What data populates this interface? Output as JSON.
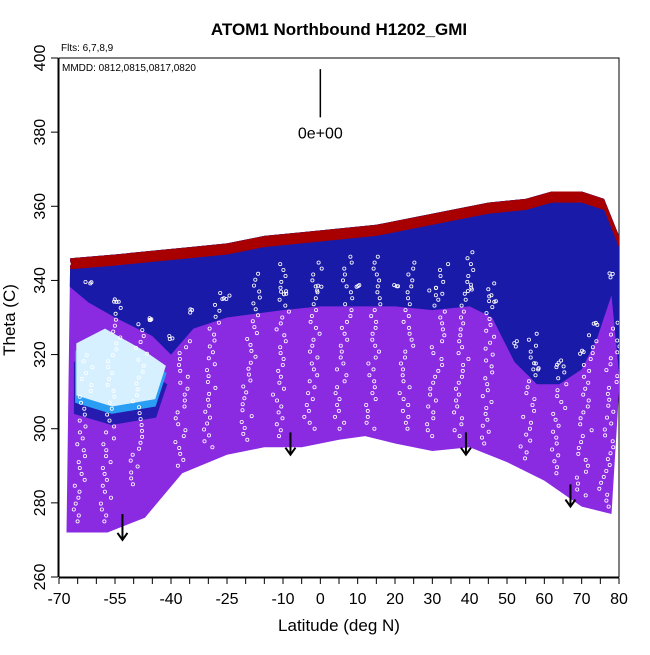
{
  "chart_data": {
    "type": "heatmap",
    "title": "ATOM1 Northbound H1202_GMI",
    "flights_label": "Flts: 6,7,8,9",
    "dates_label": "MMDD: 0812,0815,0817,0820",
    "xlabel": "Latitude (deg N)",
    "ylabel": "Theta (C)",
    "xlim": [
      -70,
      80
    ],
    "ylim": [
      260,
      400
    ],
    "x_ticks": [
      {
        "value": -70,
        "label": "-70"
      },
      {
        "value": -55,
        "label": "-55"
      },
      {
        "value": -40,
        "label": "-40"
      },
      {
        "value": -25,
        "label": "-25"
      },
      {
        "value": -10,
        "label": "-10"
      },
      {
        "value": 0,
        "label": "0"
      },
      {
        "value": 10,
        "label": "10"
      },
      {
        "value": 20,
        "label": "20"
      },
      {
        "value": 30,
        "label": "30"
      },
      {
        "value": 40,
        "label": "40"
      },
      {
        "value": 50,
        "label": "50"
      },
      {
        "value": 60,
        "label": "60"
      },
      {
        "value": 70,
        "label": "70"
      },
      {
        "value": 80,
        "label": "80"
      }
    ],
    "y_ticks": [
      {
        "value": 260,
        "label": "260"
      },
      {
        "value": 280,
        "label": "280"
      },
      {
        "value": 300,
        "label": "300"
      },
      {
        "value": 320,
        "label": "320"
      },
      {
        "value": 340,
        "label": "340"
      },
      {
        "value": 360,
        "label": "360"
      },
      {
        "value": 380,
        "label": "380"
      },
      {
        "value": 400,
        "label": "400"
      }
    ],
    "scale_annotation": "0e+00",
    "scale_bar": {
      "lat": 0,
      "theta_from": 384,
      "theta_to": 397
    },
    "colors": {
      "low": "#8a2be2",
      "deep": "#1a1aa8",
      "mid": "#2a9df4",
      "light": "#d6f0ff",
      "yellow": "#ffd21e",
      "orange": "#ff8a00",
      "red": "#e01000",
      "dark_red": "#a80000"
    },
    "domain": {
      "top": [
        [
          -67,
          346
        ],
        [
          -55,
          347
        ],
        [
          -45,
          348
        ],
        [
          -35,
          349
        ],
        [
          -25,
          350
        ],
        [
          -15,
          352
        ],
        [
          -5,
          353
        ],
        [
          5,
          354
        ],
        [
          15,
          355
        ],
        [
          25,
          357
        ],
        [
          35,
          359
        ],
        [
          45,
          361
        ],
        [
          55,
          362
        ],
        [
          62,
          364
        ],
        [
          70,
          364
        ],
        [
          76,
          362
        ],
        [
          80,
          352
        ],
        [
          80,
          310
        ]
      ],
      "bottom": [
        [
          -68,
          272
        ],
        [
          -57,
          272
        ],
        [
          -47,
          276
        ],
        [
          -37,
          288
        ],
        [
          -25,
          293
        ],
        [
          -15,
          295
        ],
        [
          -5,
          295
        ],
        [
          5,
          297
        ],
        [
          12,
          298
        ],
        [
          20,
          296
        ],
        [
          30,
          294
        ],
        [
          40,
          295
        ],
        [
          50,
          291
        ],
        [
          60,
          286
        ],
        [
          70,
          279
        ],
        [
          78,
          277
        ]
      ]
    },
    "bands": [
      {
        "name": "red",
        "color": "#e01000",
        "width": 2.5
      },
      {
        "name": "orange",
        "color": "#ff8a00",
        "width": 2.0
      },
      {
        "name": "yellow",
        "color": "#ffd21e",
        "width": 2.0
      },
      {
        "name": "light",
        "color": "#d6f0ff",
        "width": 3.5
      },
      {
        "name": "mid",
        "color": "#2a9df4",
        "width": 4.0
      },
      {
        "name": "deep",
        "color": "#1a1aa8",
        "width": 3.0
      }
    ],
    "tropopause": [
      [
        -68,
        345
      ],
      [
        -62,
        340
      ],
      [
        -55,
        336
      ],
      [
        -45,
        331
      ],
      [
        -40,
        326
      ],
      [
        -34,
        333
      ],
      [
        -25,
        336
      ],
      [
        -10,
        338
      ],
      [
        0,
        339
      ],
      [
        10,
        339
      ],
      [
        20,
        339
      ],
      [
        30,
        338
      ],
      [
        40,
        339
      ],
      [
        46,
        336
      ],
      [
        52,
        324
      ],
      [
        58,
        318
      ],
      [
        64,
        318
      ],
      [
        70,
        322
      ],
      [
        74,
        330
      ],
      [
        78,
        342
      ]
    ],
    "south_pocket": [
      [
        -66,
        318
      ],
      [
        -58,
        322
      ],
      [
        -47,
        316
      ],
      [
        -41,
        312
      ],
      [
        -44,
        303
      ],
      [
        -56,
        301
      ],
      [
        -66,
        304
      ]
    ],
    "arrows": [
      {
        "lat": -53,
        "theta_top": 277,
        "theta_bottom": 270
      },
      {
        "lat": -8,
        "theta_top": 299,
        "theta_bottom": 293
      },
      {
        "lat": 39,
        "theta_top": 299,
        "theta_bottom": 293
      },
      {
        "lat": 67,
        "theta_top": 285,
        "theta_bottom": 279
      }
    ],
    "profiles": [
      {
        "lat": -65,
        "theta_min": 275,
        "theta_max": 320
      },
      {
        "lat": -58,
        "theta_min": 275,
        "theta_max": 335
      },
      {
        "lat": -50,
        "theta_min": 285,
        "theta_max": 330
      },
      {
        "lat": -38,
        "theta_min": 290,
        "theta_max": 325
      },
      {
        "lat": -30,
        "theta_min": 295,
        "theta_max": 337
      },
      {
        "lat": -20,
        "theta_min": 297,
        "theta_max": 342
      },
      {
        "lat": -12,
        "theta_min": 298,
        "theta_max": 345
      },
      {
        "lat": -3,
        "theta_min": 300,
        "theta_max": 345
      },
      {
        "lat": 5,
        "theta_min": 300,
        "theta_max": 347
      },
      {
        "lat": 13,
        "theta_min": 300,
        "theta_max": 347
      },
      {
        "lat": 22,
        "theta_min": 300,
        "theta_max": 346
      },
      {
        "lat": 30,
        "theta_min": 298,
        "theta_max": 345
      },
      {
        "lat": 37,
        "theta_min": 298,
        "theta_max": 348
      },
      {
        "lat": 44,
        "theta_min": 296,
        "theta_max": 340
      },
      {
        "lat": 55,
        "theta_min": 292,
        "theta_max": 326
      },
      {
        "lat": 63,
        "theta_min": 288,
        "theta_max": 320
      },
      {
        "lat": 70,
        "theta_min": 282,
        "theta_max": 326
      },
      {
        "lat": 76,
        "theta_min": 279,
        "theta_max": 330
      }
    ]
  }
}
